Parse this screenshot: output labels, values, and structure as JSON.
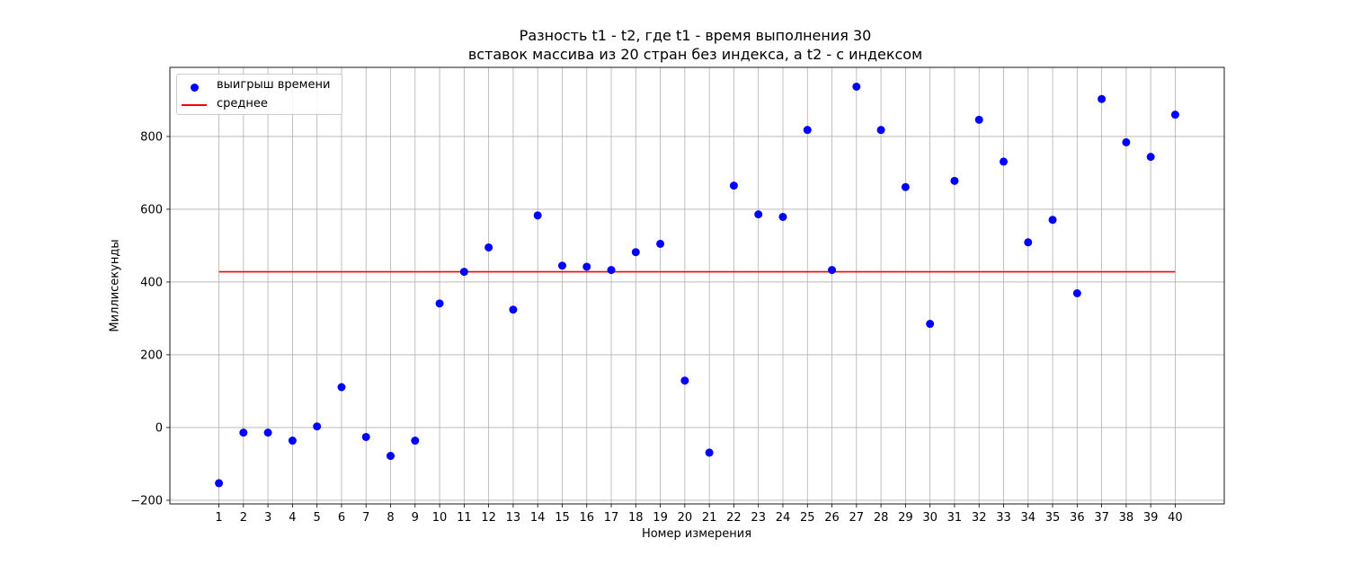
{
  "chart_data": {
    "type": "scatter",
    "title_lines": [
      "Разность t1 - t2, где t1 - время выполнения 30",
      "вставок массива из 20 стран без индекса, а t2 - с индексом"
    ],
    "xlabel": "Номер измерения",
    "ylabel": "Миллисекунды",
    "x": [
      1,
      2,
      3,
      4,
      5,
      6,
      7,
      8,
      9,
      10,
      11,
      12,
      13,
      14,
      15,
      16,
      17,
      18,
      19,
      20,
      21,
      22,
      23,
      24,
      25,
      26,
      27,
      28,
      29,
      30,
      31,
      32,
      33,
      34,
      35,
      36,
      37,
      38,
      39,
      40
    ],
    "x_ticks": [
      "1",
      "2",
      "3",
      "4",
      "5",
      "6",
      "7",
      "8",
      "9",
      "10",
      "11",
      "12",
      "13",
      "14",
      "15",
      "16",
      "17",
      "18",
      "19",
      "20",
      "21",
      "22",
      "23",
      "24",
      "25",
      "26",
      "27",
      "28",
      "29",
      "30",
      "31",
      "32",
      "33",
      "34",
      "35",
      "36",
      "37",
      "38",
      "39",
      "40"
    ],
    "y_ticks": [
      "-200",
      "0",
      "200",
      "400",
      "600",
      "800"
    ],
    "y_tick_values": [
      -200,
      0,
      200,
      400,
      600,
      800
    ],
    "xlim": [
      -1,
      42
    ],
    "ylim": [
      -210,
      990
    ],
    "series": [
      {
        "name": "выигрыш времени",
        "kind": "scatter",
        "color": "#0000ff",
        "values": [
          -153,
          -14,
          -14,
          -36,
          3,
          111,
          -26,
          -78,
          -36,
          341,
          428,
          495,
          324,
          583,
          445,
          442,
          433,
          482,
          505,
          129,
          -69,
          665,
          586,
          579,
          818,
          433,
          937,
          818,
          661,
          285,
          678,
          846,
          731,
          509,
          571,
          369,
          903,
          784,
          744,
          860
        ]
      },
      {
        "name": "среднее",
        "kind": "line",
        "color": "#ff0000",
        "value": 428
      }
    ],
    "grid": true,
    "legend_position": "top-left"
  }
}
